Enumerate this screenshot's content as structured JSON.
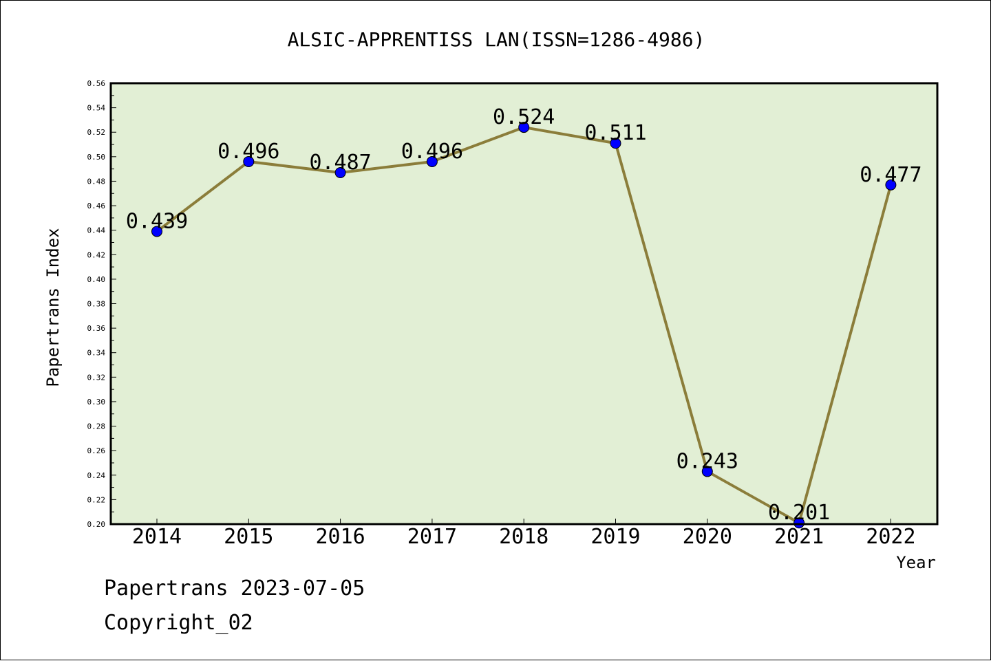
{
  "chart_data": {
    "type": "line",
    "title": "ALSIC-APPRENTISS LAN(ISSN=1286-4986)",
    "xlabel": "Year",
    "ylabel": "Papertrans Index",
    "categories": [
      "2014",
      "2015",
      "2016",
      "2017",
      "2018",
      "2019",
      "2020",
      "2021",
      "2022"
    ],
    "series": [
      {
        "values": [
          0.439,
          0.496,
          0.487,
          0.496,
          0.524,
          0.511,
          0.243,
          0.201,
          0.477
        ],
        "labels": [
          "0.439",
          "0.496",
          "0.487",
          "0.496",
          "0.524",
          "0.511",
          "0.243",
          "0.201",
          "0.477"
        ]
      }
    ],
    "ylim": [
      0.2,
      0.56
    ],
    "yticks": [
      "0.20",
      "0.22",
      "0.24",
      "0.26",
      "0.28",
      "0.30",
      "0.32",
      "0.34",
      "0.36",
      "0.38",
      "0.40",
      "0.42",
      "0.44",
      "0.46",
      "0.48",
      "0.50",
      "0.52",
      "0.54",
      "0.56"
    ],
    "grid": false,
    "colors": {
      "plot_background": "#e2efd5",
      "line": "#8b7d3a",
      "marker": "#0000ff"
    }
  },
  "footer": {
    "line1": "Papertrans 2023-07-05",
    "line2": "Copyright_02"
  }
}
